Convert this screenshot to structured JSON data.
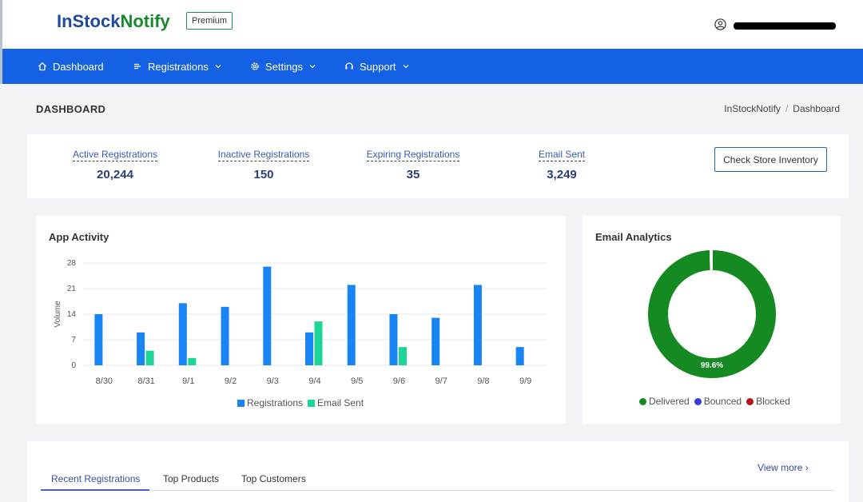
{
  "brand": {
    "name_part1": "InStock",
    "name_part2": "Notify",
    "badge": "Premium",
    "primary_color": "#1461e3"
  },
  "nav": {
    "items": [
      {
        "label": "Dashboard",
        "icon": "home-icon",
        "has_dropdown": false
      },
      {
        "label": "Registrations",
        "icon": "list-icon",
        "has_dropdown": true
      },
      {
        "label": "Settings",
        "icon": "gear-icon",
        "has_dropdown": true
      },
      {
        "label": "Support",
        "icon": "headset-icon",
        "has_dropdown": true
      }
    ]
  },
  "header": {
    "title": "DASHBOARD",
    "breadcrumb": [
      "InStockNotify",
      "Dashboard"
    ],
    "breadcrumb_sep": "/"
  },
  "stats": [
    {
      "label": "Active Registrations",
      "value": "20,244"
    },
    {
      "label": "Inactive Registrations",
      "value": "150"
    },
    {
      "label": "Expiring Registrations",
      "value": "35"
    },
    {
      "label": "Email Sent",
      "value": "3,249"
    }
  ],
  "check_inventory_label": "Check Store Inventory",
  "activity": {
    "title": "App Activity",
    "chart_data": {
      "type": "bar",
      "title": "App Activity",
      "ylabel": "Volume",
      "xlabel": "",
      "ylim": [
        0,
        28
      ],
      "yticks": [
        0,
        7,
        14,
        21,
        28
      ],
      "categories": [
        "8/30",
        "8/31",
        "9/1",
        "9/2",
        "9/3",
        "9/4",
        "9/5",
        "9/6",
        "9/7",
        "9/8",
        "9/9"
      ],
      "series": [
        {
          "name": "Registrations",
          "color": "#1985f5",
          "values": [
            14,
            9,
            17,
            16,
            27,
            9,
            22,
            14,
            13,
            22,
            5
          ]
        },
        {
          "name": "Email Sent",
          "color": "#1cd596",
          "values": [
            0,
            4,
            2,
            0,
            0,
            12,
            0,
            5,
            0,
            0,
            0
          ]
        }
      ],
      "legend": "bottom",
      "grid": true
    }
  },
  "email": {
    "title": "Email Analytics",
    "chart_data": {
      "type": "pie",
      "style": "donut",
      "labels": [
        "Delivered",
        "Bounced",
        "Blocked"
      ],
      "values": [
        99.6,
        0.2,
        0.2
      ],
      "colors": [
        "#168a22",
        "#3a3bd9",
        "#b3141b"
      ],
      "center_label": "99.6%",
      "legend": "bottom"
    }
  },
  "tabs": [
    "Recent Registrations",
    "Top Products",
    "Top Customers"
  ],
  "view_more": "View more ›"
}
